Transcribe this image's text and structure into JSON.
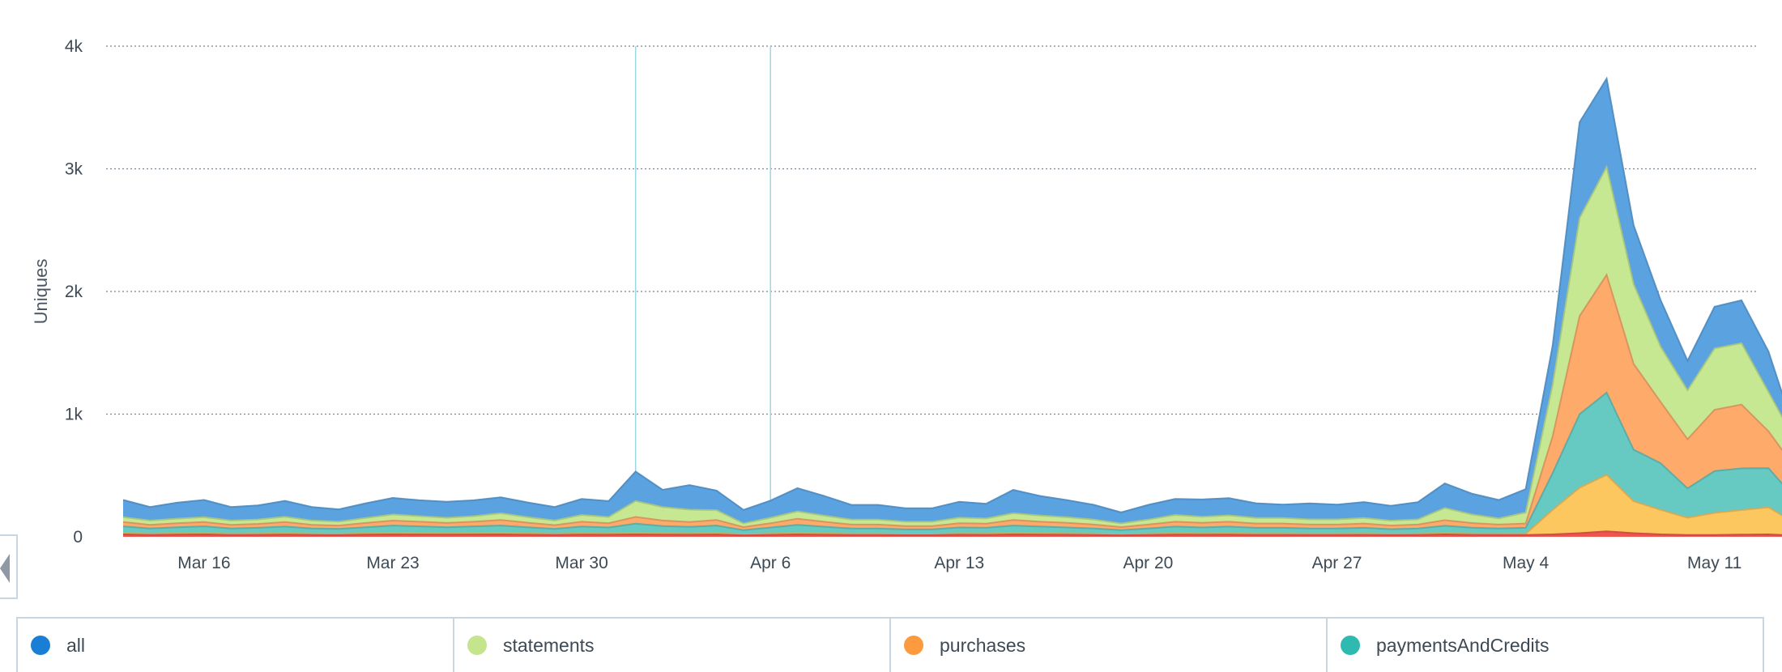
{
  "chart_data": {
    "type": "area",
    "stacked": true,
    "ylabel": "Uniques",
    "ylim": [
      0,
      4000
    ],
    "y_ticks": [
      0,
      1000,
      2000,
      3000,
      4000
    ],
    "y_tick_labels": [
      "0",
      "1k",
      "2k",
      "3k",
      "4k"
    ],
    "x_start": "Mar 13",
    "x_tick_labels": [
      "Mar 16",
      "Mar 23",
      "Mar 30",
      "Apr 6",
      "Apr 13",
      "Apr 20",
      "Apr 27",
      "May 4",
      "May 11"
    ],
    "x_tick_days": [
      3,
      10,
      17,
      24,
      31,
      38,
      45,
      52,
      59
    ],
    "grid": "horizontal dotted",
    "legend_position": "bottom",
    "markers_days": [
      19,
      24
    ],
    "series": [
      {
        "name": "",
        "color": "#f0544f",
        "values": [
          20,
          15,
          18,
          20,
          15,
          16,
          18,
          15,
          14,
          18,
          20,
          19,
          18,
          19,
          20,
          17,
          15,
          18,
          17,
          20,
          18,
          17,
          19,
          12,
          16,
          20,
          17,
          15,
          15,
          13,
          13,
          17,
          16,
          20,
          18,
          17,
          15,
          12,
          15,
          18,
          17,
          18,
          16,
          16,
          15,
          15,
          16,
          14,
          15,
          20,
          16,
          15,
          15,
          20,
          30,
          45,
          30,
          20,
          15,
          15,
          18,
          20,
          10
        ]
      },
      {
        "name": "",
        "color": "#fdc75f",
        "values": [
          10,
          8,
          10,
          10,
          8,
          9,
          10,
          8,
          8,
          10,
          12,
          11,
          10,
          11,
          12,
          10,
          8,
          10,
          9,
          12,
          10,
          9,
          11,
          7,
          9,
          12,
          10,
          8,
          8,
          7,
          7,
          9,
          9,
          12,
          10,
          9,
          8,
          7,
          8,
          10,
          9,
          10,
          9,
          9,
          8,
          8,
          9,
          8,
          8,
          10,
          8,
          8,
          8,
          200,
          370,
          460,
          260,
          200,
          140,
          180,
          200,
          220,
          100
        ]
      },
      {
        "name": "paymentsAndCredits",
        "color": "#66c9c2",
        "values": [
          55,
          45,
          50,
          55,
          45,
          48,
          55,
          45,
          42,
          50,
          60,
          55,
          50,
          55,
          60,
          50,
          42,
          55,
          50,
          75,
          60,
          55,
          62,
          35,
          50,
          65,
          55,
          45,
          45,
          40,
          40,
          50,
          48,
          60,
          55,
          50,
          45,
          35,
          45,
          55,
          50,
          55,
          48,
          48,
          45,
          45,
          48,
          40,
          45,
          60,
          50,
          45,
          50,
          300,
          600,
          670,
          420,
          380,
          240,
          340,
          340,
          320,
          200
        ]
      },
      {
        "name": "purchases",
        "color": "#fdaa6a",
        "values": [
          35,
          30,
          32,
          35,
          30,
          32,
          38,
          30,
          28,
          35,
          40,
          38,
          35,
          38,
          45,
          38,
          30,
          40,
          35,
          55,
          45,
          40,
          45,
          25,
          35,
          50,
          40,
          32,
          32,
          28,
          28,
          35,
          34,
          45,
          40,
          38,
          32,
          25,
          32,
          40,
          38,
          40,
          35,
          35,
          32,
          32,
          35,
          30,
          32,
          45,
          38,
          32,
          35,
          300,
          800,
          960,
          700,
          500,
          400,
          500,
          520,
          300,
          250
        ]
      },
      {
        "name": "statements",
        "color": "#c7e893",
        "values": [
          40,
          35,
          38,
          40,
          35,
          36,
          42,
          35,
          32,
          40,
          50,
          45,
          42,
          45,
          55,
          45,
          38,
          55,
          50,
          130,
          110,
          100,
          80,
          30,
          45,
          60,
          50,
          40,
          40,
          35,
          35,
          45,
          42,
          55,
          50,
          45,
          40,
          30,
          40,
          55,
          50,
          52,
          45,
          45,
          42,
          42,
          45,
          40,
          42,
          100,
          70,
          50,
          90,
          420,
          800,
          880,
          650,
          450,
          400,
          500,
          500,
          320,
          220
        ]
      },
      {
        "name": "all",
        "color": "#5aa2e0",
        "values": [
          140,
          110,
          130,
          140,
          110,
          115,
          130,
          110,
          100,
          120,
          135,
          130,
          130,
          130,
          130,
          120,
          110,
          130,
          130,
          240,
          140,
          200,
          160,
          110,
          140,
          190,
          160,
          120,
          120,
          110,
          110,
          130,
          120,
          190,
          160,
          140,
          120,
          90,
          120,
          130,
          140,
          140,
          120,
          110,
          130,
          120,
          130,
          120,
          140,
          200,
          170,
          150,
          190,
          320,
          780,
          720,
          480,
          380,
          240,
          340,
          350,
          330,
          60
        ]
      }
    ]
  }
}
